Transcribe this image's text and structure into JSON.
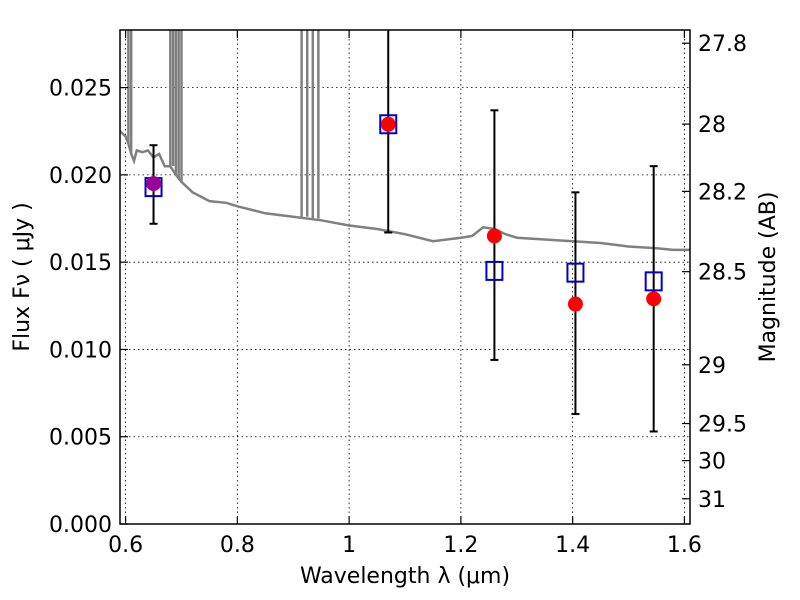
{
  "chart_data": {
    "type": "scatter",
    "xlabel": "Wavelength  λ (μm)",
    "ylabel": "Flux  Fν  ( μJy )",
    "y2label": "Magnitude (AB)",
    "xlim": [
      0.59,
      1.61
    ],
    "ylim": [
      0.0,
      0.0283
    ],
    "x_ticks": [
      0.6,
      0.8,
      1.0,
      1.2,
      1.4,
      1.6
    ],
    "x_tick_labels": [
      "0.6",
      "0.8",
      "1",
      "1.2",
      "1.4",
      "1.6"
    ],
    "y_ticks": [
      0.0,
      0.005,
      0.01,
      0.015,
      0.02,
      0.025
    ],
    "y_tick_labels": [
      "0.000",
      "0.005",
      "0.010",
      "0.015",
      "0.020",
      "0.025"
    ],
    "mag_ticks": [
      27.8,
      28,
      28.2,
      28.5,
      29,
      29.5,
      30,
      31
    ],
    "mag_tick_labels": [
      "27.8",
      "28",
      "28.2",
      "28.5",
      "29",
      "29.5",
      "30",
      "31"
    ],
    "grid": true,
    "colors": {
      "observed": "#ff0000",
      "model": "#0000cc",
      "sed": "#808080",
      "errorbar": "#000000",
      "overlap": "#990099"
    },
    "series": [
      {
        "kind": "observed_with_error",
        "x": [
          0.65,
          1.07,
          1.26,
          1.405,
          1.545
        ],
        "y": [
          0.0195,
          0.0229,
          0.0165,
          0.0126,
          0.0129
        ],
        "yerr_low": [
          0.0172,
          0.0167,
          0.0094,
          0.0063,
          0.0053
        ],
        "yerr_high": [
          0.0217,
          0.0283,
          0.0237,
          0.019,
          0.0205
        ]
      },
      {
        "kind": "model_photometry",
        "x": [
          0.65,
          1.07,
          1.26,
          1.405,
          1.545
        ],
        "y": [
          0.0193,
          0.0229,
          0.0145,
          0.0144,
          0.0139
        ]
      },
      {
        "kind": "sed_curve",
        "x": [
          0.59,
          0.6,
          0.605,
          0.61,
          0.615,
          0.62,
          0.63,
          0.64,
          0.65,
          0.66,
          0.67,
          0.68,
          0.69,
          0.7,
          0.72,
          0.75,
          0.78,
          0.8,
          0.85,
          0.9,
          0.95,
          1.0,
          1.05,
          1.1,
          1.15,
          1.2,
          1.22,
          1.24,
          1.26,
          1.28,
          1.3,
          1.35,
          1.4,
          1.45,
          1.5,
          1.55,
          1.58,
          1.61
        ],
        "y": [
          0.0225,
          0.0222,
          0.0218,
          0.0212,
          0.0208,
          0.0214,
          0.0213,
          0.0214,
          0.021,
          0.0212,
          0.0205,
          0.0205,
          0.02,
          0.0196,
          0.019,
          0.0185,
          0.0184,
          0.0182,
          0.0178,
          0.0176,
          0.0174,
          0.0171,
          0.0169,
          0.0166,
          0.0162,
          0.0164,
          0.0165,
          0.017,
          0.0169,
          0.0166,
          0.0164,
          0.0163,
          0.0162,
          0.0161,
          0.0159,
          0.0158,
          0.0157,
          0.0157
        ]
      },
      {
        "kind": "sed_absorption_lines",
        "x": [
          0.605,
          0.61,
          0.68,
          0.685,
          0.69,
          0.695,
          0.7,
          0.915,
          0.925,
          0.935,
          0.945
        ],
        "y_bottom": [
          0.0218,
          0.0212,
          0.0205,
          0.0205,
          0.02,
          0.0198,
          0.0196,
          0.0176,
          0.0176,
          0.0175,
          0.0175
        ]
      }
    ]
  }
}
